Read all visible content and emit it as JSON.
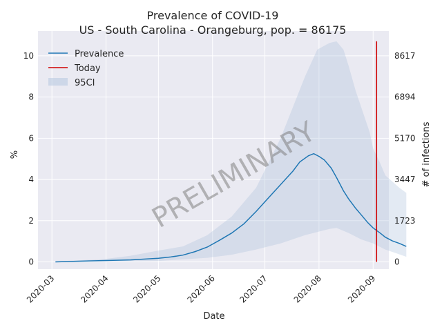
{
  "chart_data": {
    "type": "line",
    "title": "Prevalence of COVID-19\nUS - South Carolina - Orangeburg, pop. = 86175",
    "title_lines": [
      "Prevalence of COVID-19",
      "US - South Carolina - Orangeburg, pop. = 86175"
    ],
    "xlabel": "Date",
    "ylabel": "%",
    "ylabel_right": "# of infections",
    "watermark": "PRELIMINARY",
    "grid": true,
    "legend_position": "top-left",
    "legend": [
      "Prevalence",
      "Today",
      "95CI"
    ],
    "xlim": [
      "2020-02-22",
      "2020-09-10"
    ],
    "ylim": [
      -0.35,
      11.2
    ],
    "x_ticks": [
      "2020-03",
      "2020-04",
      "2020-05",
      "2020-06",
      "2020-07",
      "2020-08",
      "2020-09"
    ],
    "x_tick_dates": [
      "2020-03-01",
      "2020-04-01",
      "2020-05-01",
      "2020-06-01",
      "2020-07-01",
      "2020-08-01",
      "2020-09-01"
    ],
    "y_ticks": [
      0,
      2,
      4,
      6,
      8,
      10
    ],
    "y_ticks_right": [
      {
        "value": 0,
        "label": "0"
      },
      {
        "value": 2,
        "label": "1723"
      },
      {
        "value": 4,
        "label": "3447"
      },
      {
        "value": 6,
        "label": "5170"
      },
      {
        "value": 8,
        "label": "6894"
      },
      {
        "value": 10,
        "label": "8617"
      }
    ],
    "series": [
      {
        "name": "Prevalence",
        "color": "#1f77b4",
        "points": [
          [
            "2020-03-03",
            0.0
          ],
          [
            "2020-03-15",
            0.03
          ],
          [
            "2020-04-01",
            0.07
          ],
          [
            "2020-04-15",
            0.1
          ],
          [
            "2020-05-01",
            0.18
          ],
          [
            "2020-05-08",
            0.24
          ],
          [
            "2020-05-15",
            0.33
          ],
          [
            "2020-05-22",
            0.5
          ],
          [
            "2020-05-29",
            0.72
          ],
          [
            "2020-06-05",
            1.05
          ],
          [
            "2020-06-12",
            1.4
          ],
          [
            "2020-06-19",
            1.85
          ],
          [
            "2020-06-26",
            2.45
          ],
          [
            "2020-07-03",
            3.1
          ],
          [
            "2020-07-10",
            3.75
          ],
          [
            "2020-07-17",
            4.4
          ],
          [
            "2020-07-21",
            4.85
          ],
          [
            "2020-07-26",
            5.15
          ],
          [
            "2020-07-29",
            5.25
          ],
          [
            "2020-08-01",
            5.12
          ],
          [
            "2020-08-04",
            4.95
          ],
          [
            "2020-08-08",
            4.55
          ],
          [
            "2020-08-11",
            4.1
          ],
          [
            "2020-08-15",
            3.45
          ],
          [
            "2020-08-18",
            3.05
          ],
          [
            "2020-08-22",
            2.6
          ],
          [
            "2020-08-25",
            2.3
          ],
          [
            "2020-08-29",
            1.9
          ],
          [
            "2020-09-01",
            1.65
          ],
          [
            "2020-09-05",
            1.4
          ],
          [
            "2020-09-08",
            1.2
          ],
          [
            "2020-09-12",
            1.02
          ],
          [
            "2020-09-16",
            0.9
          ],
          [
            "2020-09-20",
            0.75
          ]
        ]
      }
    ],
    "today": {
      "name": "Today",
      "color": "#d00000",
      "date": "2020-09-03",
      "y_range": [
        0,
        10.7
      ]
    },
    "ci": {
      "name": "95CI",
      "color": "#b0c4de",
      "upper": [
        [
          "2020-03-03",
          0.02
        ],
        [
          "2020-04-01",
          0.15
        ],
        [
          "2020-04-15",
          0.3
        ],
        [
          "2020-05-01",
          0.55
        ],
        [
          "2020-05-15",
          0.75
        ],
        [
          "2020-05-29",
          1.3
        ],
        [
          "2020-06-12",
          2.2
        ],
        [
          "2020-06-26",
          3.6
        ],
        [
          "2020-07-03",
          4.8
        ],
        [
          "2020-07-10",
          6.0
        ],
        [
          "2020-07-17",
          7.5
        ],
        [
          "2020-07-24",
          9.0
        ],
        [
          "2020-07-31",
          10.3
        ],
        [
          "2020-08-07",
          10.62
        ],
        [
          "2020-08-11",
          10.7
        ],
        [
          "2020-08-15",
          10.3
        ],
        [
          "2020-08-18",
          9.5
        ],
        [
          "2020-08-22",
          8.3
        ],
        [
          "2020-08-26",
          7.3
        ],
        [
          "2020-08-30",
          6.3
        ],
        [
          "2020-09-01",
          5.5
        ],
        [
          "2020-09-05",
          4.8
        ],
        [
          "2020-09-08",
          4.2
        ],
        [
          "2020-09-12",
          3.9
        ],
        [
          "2020-09-16",
          3.6
        ],
        [
          "2020-09-20",
          3.35
        ]
      ],
      "lower": [
        [
          "2020-03-03",
          0.0
        ],
        [
          "2020-04-01",
          0.02
        ],
        [
          "2020-05-01",
          0.05
        ],
        [
          "2020-05-29",
          0.2
        ],
        [
          "2020-06-12",
          0.35
        ],
        [
          "2020-06-26",
          0.6
        ],
        [
          "2020-07-10",
          0.9
        ],
        [
          "2020-07-24",
          1.3
        ],
        [
          "2020-08-07",
          1.6
        ],
        [
          "2020-08-11",
          1.65
        ],
        [
          "2020-08-18",
          1.4
        ],
        [
          "2020-08-25",
          1.1
        ],
        [
          "2020-09-01",
          0.9
        ],
        [
          "2020-09-08",
          0.6
        ],
        [
          "2020-09-15",
          0.4
        ],
        [
          "2020-09-20",
          0.25
        ]
      ]
    }
  }
}
